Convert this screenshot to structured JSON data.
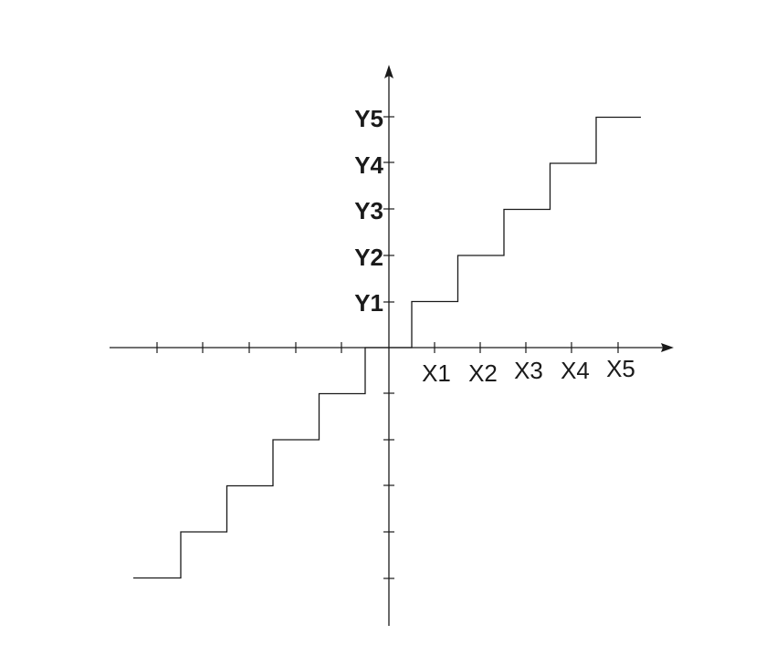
{
  "diagram": {
    "x_labels": [
      "X1",
      "X2",
      "X3",
      "X4",
      "X5"
    ],
    "y_labels": [
      "Y1",
      "Y2",
      "Y3",
      "Y4",
      "Y5"
    ],
    "positive_steps": 5,
    "negative_steps": 5,
    "line_color": "#1a1a1a"
  }
}
